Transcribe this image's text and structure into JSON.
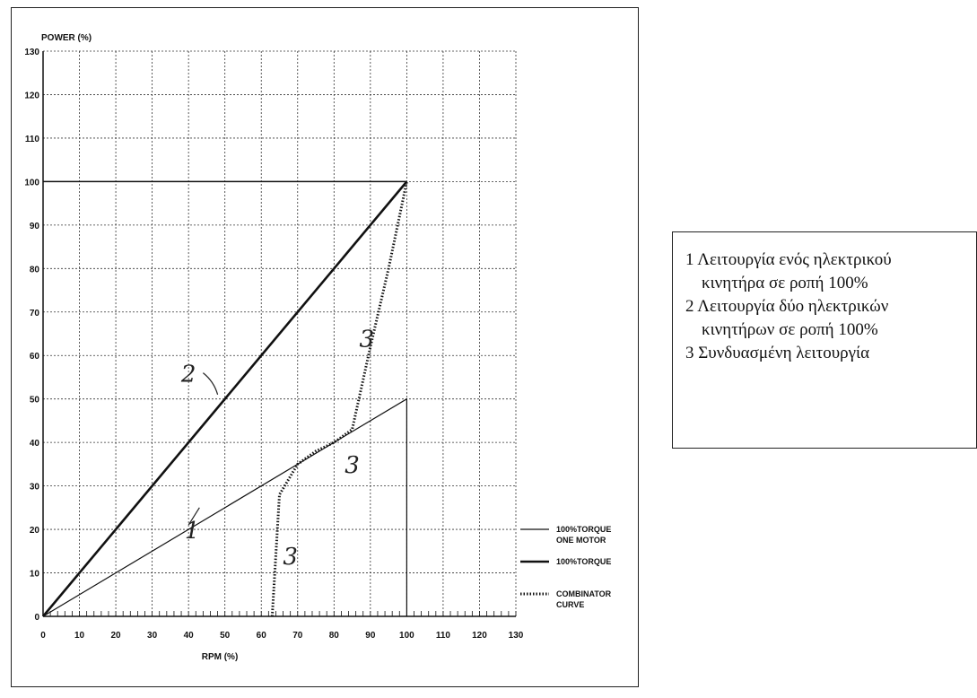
{
  "chart_data": {
    "type": "line",
    "ylabel": "POWER (%)",
    "xlabel": "RPM (%)",
    "xlim": [
      0,
      130
    ],
    "ylim": [
      0,
      130
    ],
    "x_ticks": [
      0,
      10,
      20,
      30,
      40,
      50,
      60,
      70,
      80,
      90,
      100,
      110,
      120,
      130
    ],
    "y_ticks": [
      0,
      10,
      20,
      30,
      40,
      50,
      60,
      70,
      80,
      90,
      100,
      110,
      120,
      130
    ],
    "grid": true,
    "legend_position": "bottom-right",
    "series": [
      {
        "name": "100%TORQUE ONE MOTOR",
        "style": "thin",
        "x": [
          0,
          100,
          100
        ],
        "y": [
          0,
          50,
          0
        ]
      },
      {
        "name": "100%TORQUE",
        "style": "thick",
        "x": [
          0,
          100
        ],
        "y": [
          0,
          100
        ]
      },
      {
        "name": "COMBINATOR CURVE",
        "style": "dotted",
        "x": [
          63,
          64,
          65,
          70,
          75,
          80,
          85,
          90,
          95,
          100
        ],
        "y": [
          0,
          14,
          28,
          35,
          38,
          40,
          43,
          62,
          80,
          100
        ]
      }
    ],
    "reference_lines": [
      {
        "y": 100,
        "x_from": 0,
        "x_to": 100
      }
    ],
    "legend": [
      {
        "label_lines": [
          "100%TORQUE",
          "ONE MOTOR"
        ],
        "style": "thin"
      },
      {
        "label_lines": [
          "100%TORQUE"
        ],
        "style": "thick"
      },
      {
        "label_lines": [
          "COMBINATOR",
          "CURVE"
        ],
        "style": "dotted"
      }
    ],
    "annotations": [
      {
        "text": "1",
        "x": 41,
        "y": 18
      },
      {
        "text": "2",
        "x": 40,
        "y": 54
      },
      {
        "text": "3",
        "x": 85,
        "y": 33
      },
      {
        "text": "3",
        "x": 89,
        "y": 62
      },
      {
        "text": "3",
        "x": 68,
        "y": 12
      }
    ],
    "colors": {
      "grid": "#333333",
      "line": "#111111"
    }
  },
  "notes": {
    "lines": [
      "1 Λειτουργία ενός ηλεκτρικού",
      "κινητήρα σε ροπή 100%",
      "2 Λειτουργία δύο ηλεκτρικών",
      "κινητήρων σε ροπή 100%",
      "3 Συνδυασμένη λειτουργία"
    ]
  }
}
